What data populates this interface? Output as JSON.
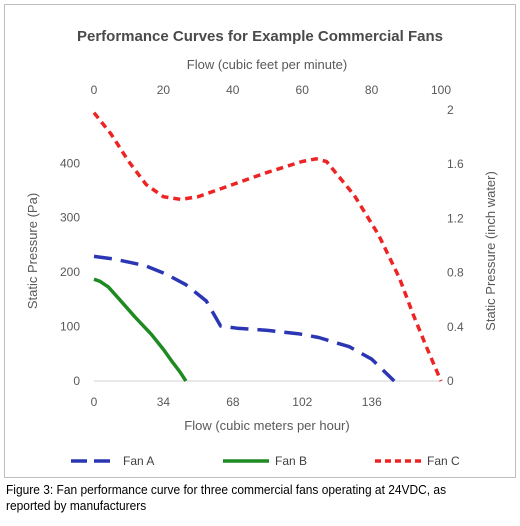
{
  "chart_data": {
    "type": "line",
    "title": "Performance Curves for Example Commercial Fans",
    "x_bottom_label": "Flow (cubic meters per hour)",
    "x_top_label": "Flow (cubic feet per minute)",
    "y_left_label": "Static Pressure (Pa)",
    "y_right_label": "Static Pressure (inch water)",
    "x_bottom_ticks": [
      "0",
      "34",
      "68",
      "102",
      "136"
    ],
    "x_bottom_tick_values": [
      0,
      34,
      68,
      102,
      136
    ],
    "x_top_ticks": [
      "0",
      "20",
      "40",
      "60",
      "80",
      "100"
    ],
    "x_top_tick_values": [
      0,
      20,
      40,
      60,
      80,
      100
    ],
    "y_left_ticks": [
      "0",
      "100",
      "200",
      "300",
      "400"
    ],
    "y_left_tick_values": [
      0,
      100,
      200,
      300,
      400
    ],
    "y_right_ticks": [
      "0",
      "0.4",
      "0.8",
      "1.2",
      "1.6",
      "2"
    ],
    "y_right_tick_values": [
      0,
      0.4,
      0.8,
      1.2,
      1.6,
      2
    ],
    "x_bottom_range": [
      0,
      169.9
    ],
    "x_top_range": [
      0,
      100
    ],
    "y_left_range": [
      0,
      498
    ],
    "y_right_range": [
      0,
      2
    ],
    "grid": false,
    "legend_position": "bottom",
    "series": [
      {
        "name": "Fan A",
        "color": "#2b36b4",
        "style": "long-dash",
        "axes": "bottom-left",
        "x": [
          0,
          10,
          25,
          35,
          45,
          55,
          62,
          70,
          85,
          100,
          110,
          125,
          136,
          147
        ],
        "y": [
          229,
          224,
          212,
          197,
          177,
          147,
          101,
          97,
          93,
          87,
          80,
          63,
          40,
          0
        ]
      },
      {
        "name": "Fan B",
        "color": "#1f8a22",
        "style": "solid",
        "axes": "bottom-left",
        "x": [
          0,
          3,
          7,
          12,
          20,
          28,
          34,
          38,
          42,
          45
        ],
        "y": [
          187,
          183,
          173,
          152,
          118,
          86,
          58,
          37,
          17,
          0
        ]
      },
      {
        "name": "Fan C",
        "color": "#ee2424",
        "style": "short-dash",
        "axes": "top-right",
        "x": [
          0,
          5,
          10,
          15,
          20,
          25,
          30,
          40,
          50,
          60,
          64,
          67,
          75,
          82,
          88,
          92,
          96,
          100
        ],
        "y": [
          1.98,
          1.82,
          1.62,
          1.45,
          1.36,
          1.34,
          1.36,
          1.45,
          1.54,
          1.62,
          1.64,
          1.62,
          1.37,
          1.08,
          0.76,
          0.49,
          0.24,
          0
        ]
      }
    ]
  },
  "caption": "Figure 3: Fan performance curve for three commercial fans operating at 24VDC, as reported by manufacturers"
}
